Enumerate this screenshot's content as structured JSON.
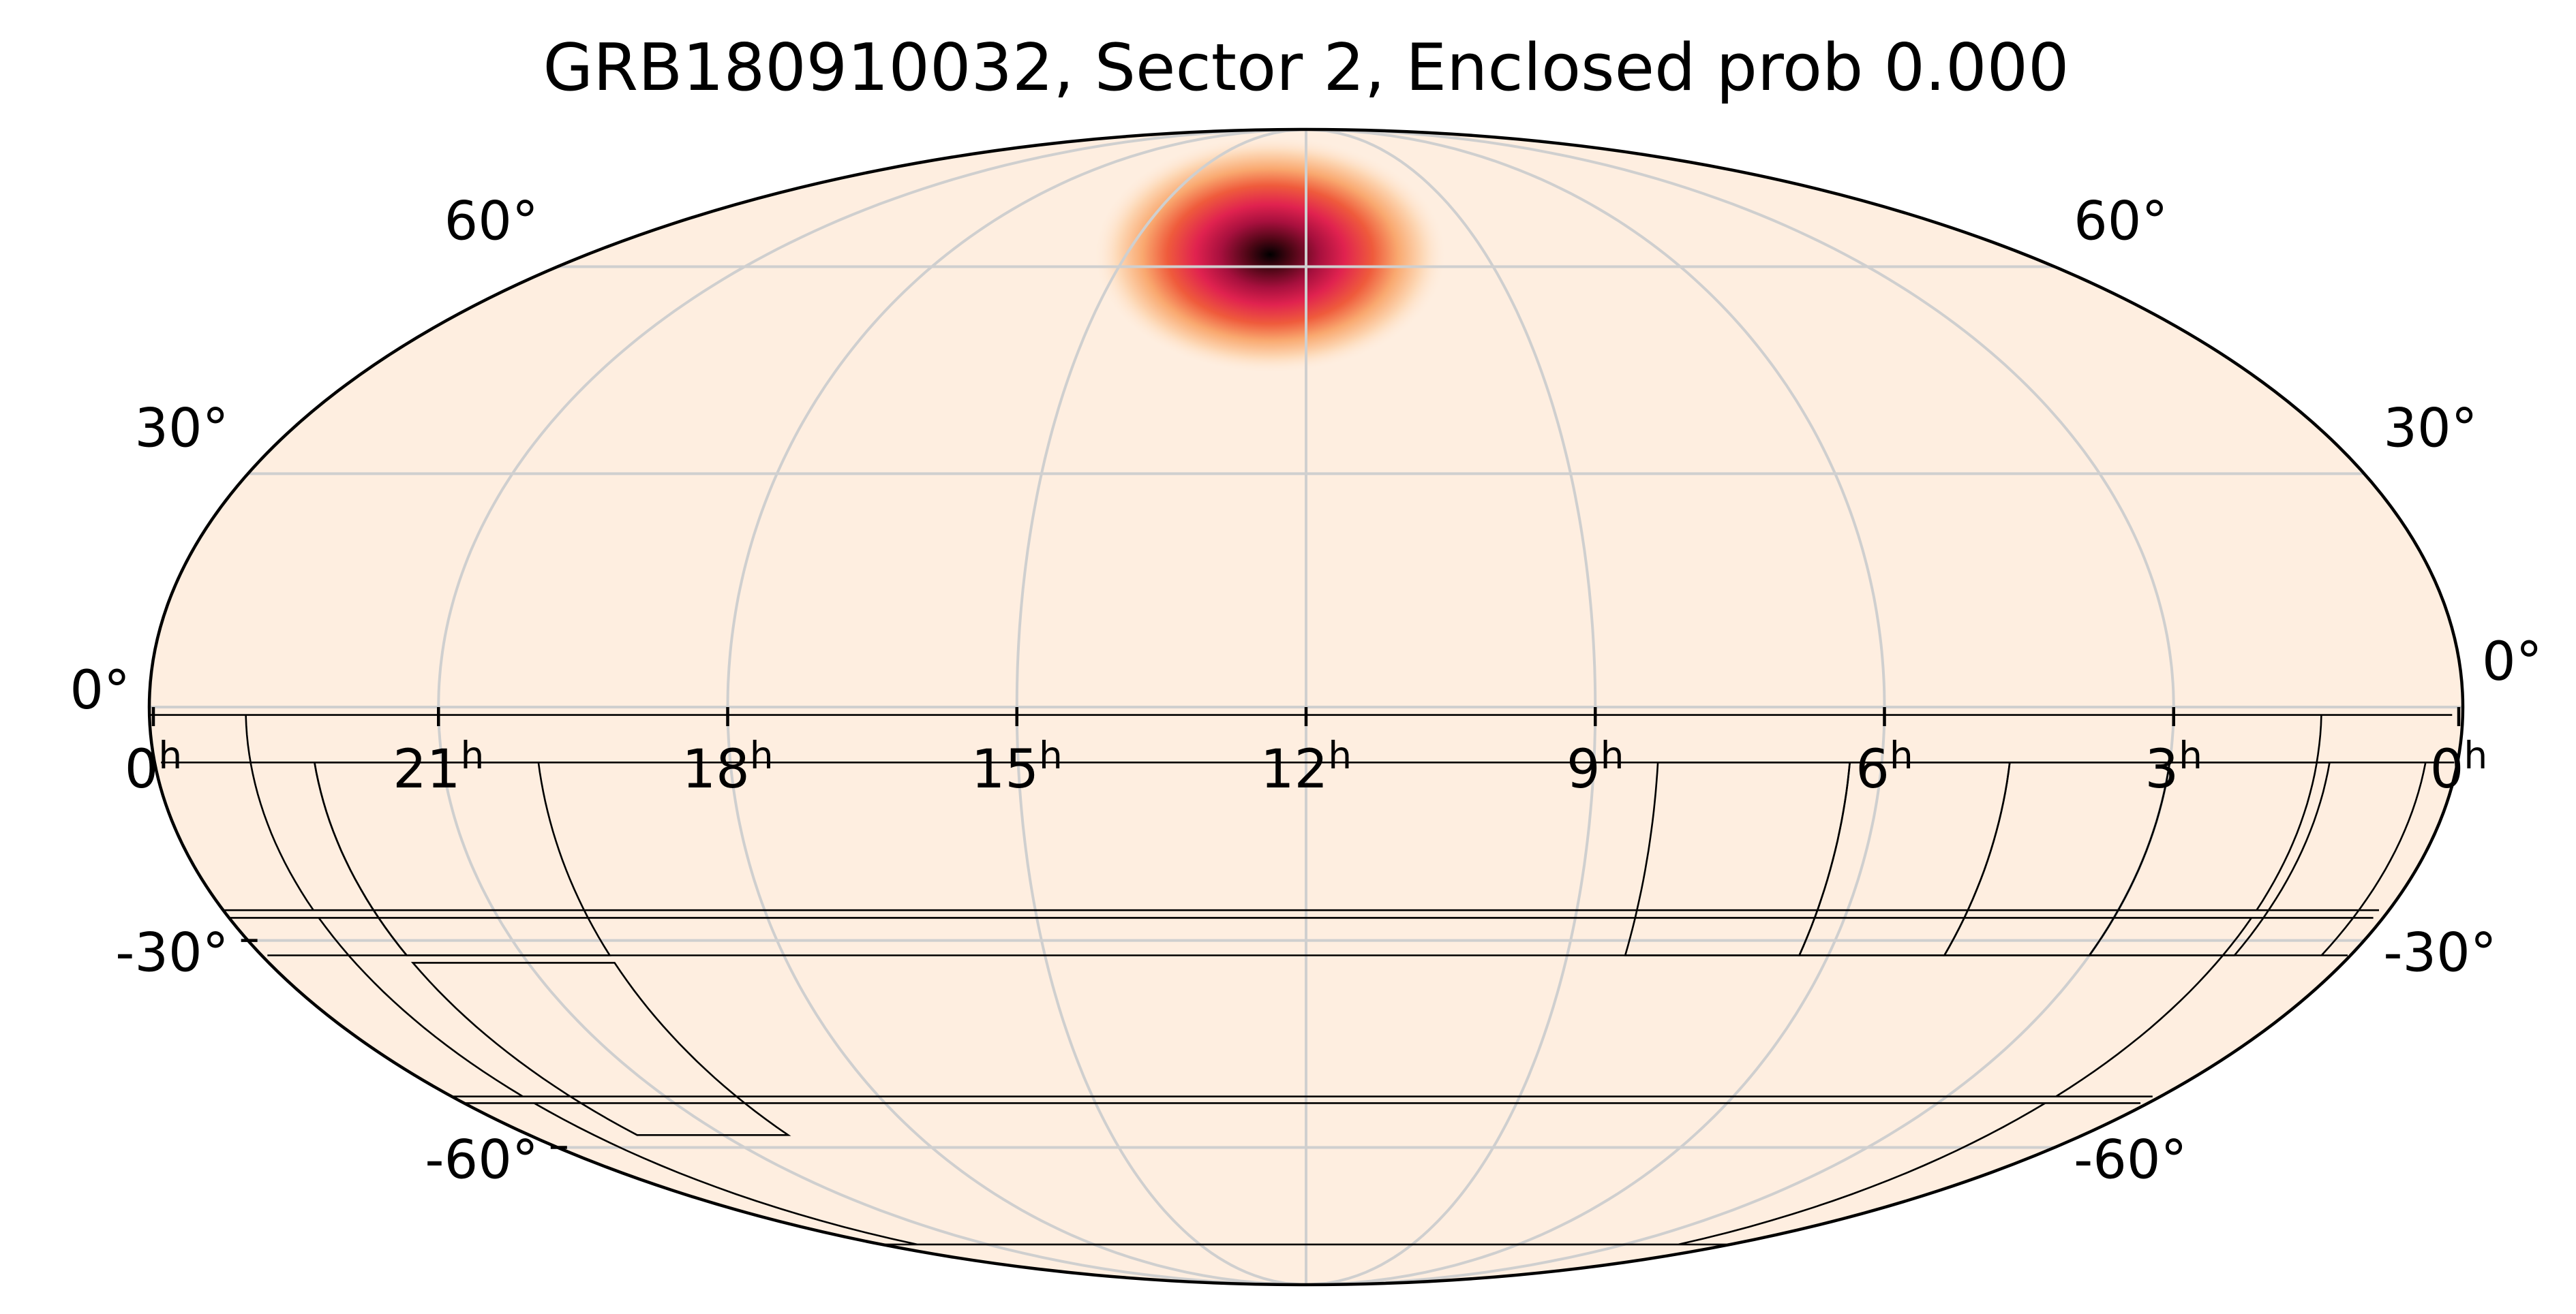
{
  "title": "GRB180910032, Sector 2, Enclosed prob 0.000",
  "projection": "mollweide",
  "background_color": "#feeee0",
  "colormap": [
    "#feeee0",
    "#fdd8b6",
    "#f9a86f",
    "#ef5b3c",
    "#e0224f",
    "#a8103e",
    "#4a0614",
    "#000000"
  ],
  "probability_peak": {
    "ra_hours": 12.6,
    "dec_deg": 62
  },
  "ra_labels": [
    {
      "hours": 24,
      "text": "0",
      "unit": "h"
    },
    {
      "hours": 21,
      "text": "21",
      "unit": "h"
    },
    {
      "hours": 18,
      "text": "18",
      "unit": "h"
    },
    {
      "hours": 15,
      "text": "15",
      "unit": "h"
    },
    {
      "hours": 12,
      "text": "12",
      "unit": "h"
    },
    {
      "hours": 9,
      "text": "9",
      "unit": "h"
    },
    {
      "hours": 6,
      "text": "6",
      "unit": "h"
    },
    {
      "hours": 3,
      "text": "3",
      "unit": "h"
    },
    {
      "hours": 0,
      "text": "0",
      "unit": "h"
    }
  ],
  "dec_labels": [
    {
      "dec": 60,
      "text": "60°"
    },
    {
      "dec": 30,
      "text": "30°"
    },
    {
      "dec": 0,
      "text": "0°"
    },
    {
      "dec": -30,
      "text": "-30°"
    },
    {
      "dec": -60,
      "text": "-60°"
    }
  ],
  "grid": {
    "ra_hours_step": 3,
    "dec_deg_step": 30
  },
  "tess_footprint_cameras_deg": [
    {
      "ra": [
        -15,
        22,
        22,
        -15
      ],
      "dec": [
        -1,
        -1,
        -26,
        -26
      ]
    },
    {
      "ra": [
        -15,
        22,
        22,
        -15
      ],
      "dec": [
        -27,
        -27,
        -52,
        -52
      ]
    },
    {
      "ra": [
        -15,
        22,
        22,
        -15
      ],
      "dec": [
        -53,
        -53,
        -78,
        -78
      ]
    },
    {
      "ra": [
        20,
        45,
        45,
        20
      ],
      "dec": [
        -7,
        -7,
        -32,
        -32
      ]
    },
    {
      "ra": [
        45,
        70,
        70,
        45
      ],
      "dec": [
        -7,
        -7,
        -32,
        -32
      ]
    },
    {
      "ra": [
        70,
        95,
        95,
        70
      ],
      "dec": [
        -7,
        -7,
        -32,
        -32
      ]
    },
    {
      "ra": [
        95,
        125,
        125,
        95
      ],
      "dec": [
        -7,
        -7,
        -32,
        -32
      ]
    },
    {
      "ra": [
        300,
        335,
        335,
        300
      ],
      "dec": [
        -7,
        -7,
        -32,
        -32
      ]
    },
    {
      "ra": [
        335,
        365,
        365,
        335
      ],
      "dec": [
        -7,
        -7,
        -32,
        -32
      ]
    },
    {
      "ra": [
        300,
        335,
        335,
        300
      ],
      "dec": [
        -33,
        -33,
        -58,
        -58
      ]
    }
  ]
}
